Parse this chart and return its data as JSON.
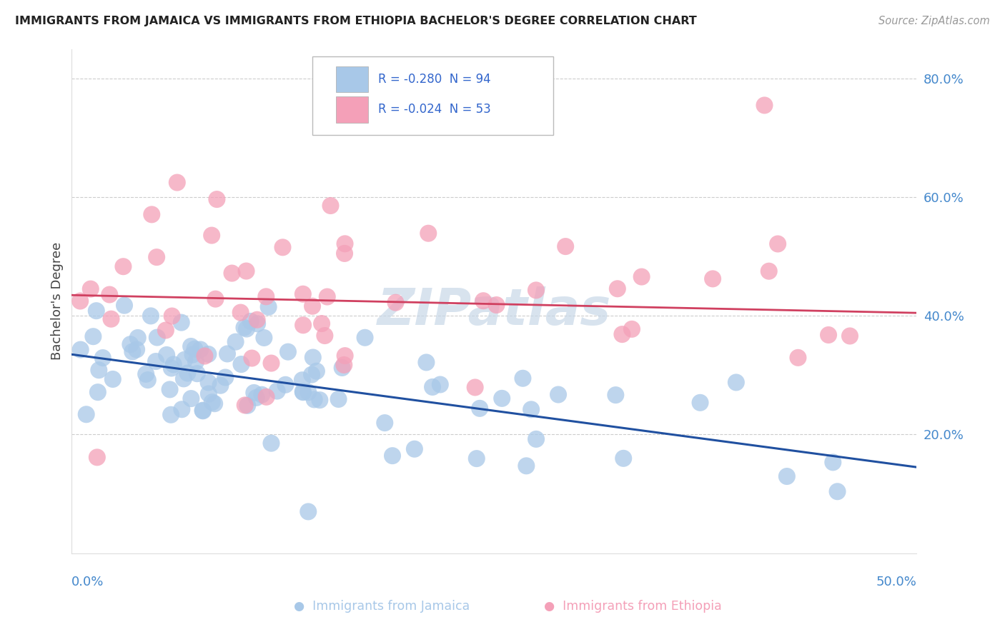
{
  "title": "IMMIGRANTS FROM JAMAICA VS IMMIGRANTS FROM ETHIOPIA BACHELOR'S DEGREE CORRELATION CHART",
  "source": "Source: ZipAtlas.com",
  "ylabel": "Bachelor's Degree",
  "xlim": [
    0.0,
    0.5
  ],
  "ylim": [
    0.0,
    0.85
  ],
  "legend_r_jamaica": "R = -0.280",
  "legend_n_jamaica": "N = 94",
  "legend_r_ethiopia": "R = -0.024",
  "legend_n_ethiopia": "N = 53",
  "jamaica_color": "#a8c8e8",
  "ethiopia_color": "#f4a0b8",
  "jamaica_line_color": "#2050a0",
  "ethiopia_line_color": "#d04060",
  "watermark": "ZIPatlas",
  "jamaica_line_x": [
    0.0,
    0.5
  ],
  "jamaica_line_y": [
    0.335,
    0.145
  ],
  "ethiopia_line_x": [
    0.0,
    0.5
  ],
  "ethiopia_line_y": [
    0.435,
    0.405
  ],
  "y_ticks": [
    0.2,
    0.4,
    0.6,
    0.8
  ],
  "y_tick_labels": [
    "20.0%",
    "40.0%",
    "60.0%",
    "80.0%"
  ],
  "grid_color": "#cccccc",
  "bg_color": "#ffffff",
  "title_color": "#222222",
  "source_color": "#999999",
  "tick_color": "#4488cc"
}
